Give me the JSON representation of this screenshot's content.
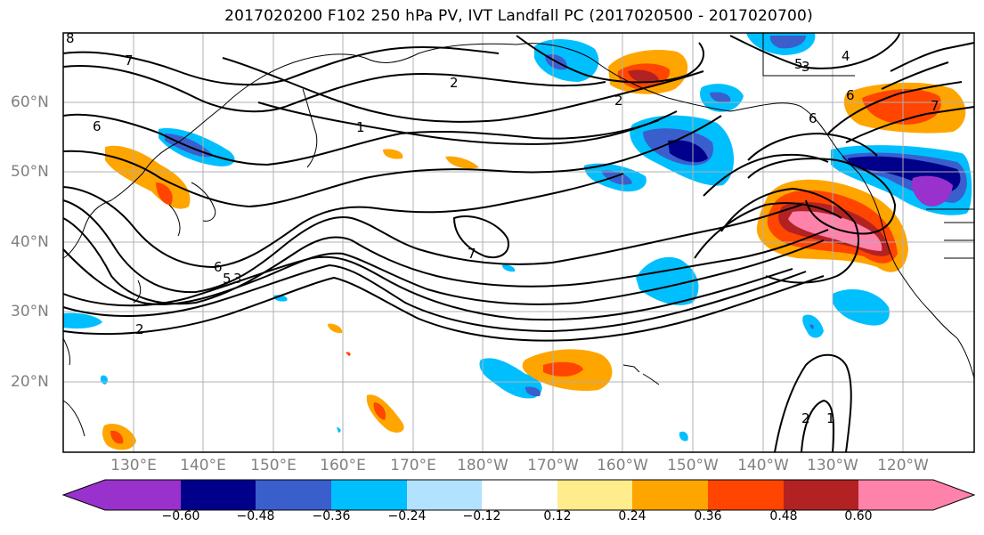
{
  "title": "2017020200 F102 250 hPa PV, IVT Landfall PC (2017020500 - 2017020700)",
  "map": {
    "lat_labels": [
      "60°N",
      "50°N",
      "40°N",
      "30°N",
      "20°N"
    ],
    "lon_labels": [
      "130°E",
      "140°E",
      "150°E",
      "160°E",
      "170°E",
      "180°W",
      "170°W",
      "160°W",
      "150°W",
      "140°W",
      "130°W",
      "120°W"
    ],
    "contour_labels": [
      "8",
      "7",
      "6",
      "2",
      "6",
      "5",
      "3",
      "2",
      "1",
      "7",
      "2",
      "4",
      "6",
      "7",
      "6",
      "5",
      "3",
      "2",
      "1"
    ]
  },
  "colorbar": {
    "tick_labels": [
      "−0.60",
      "−0.48",
      "−0.36",
      "−0.24",
      "−0.12",
      "0.12",
      "0.24",
      "0.36",
      "0.48",
      "0.60"
    ],
    "colors": [
      "#9932cc",
      "#00008b",
      "#3a5fcd",
      "#00bfff",
      "#b2e2ff",
      "#ffffff",
      "#ffec8b",
      "#ffa500",
      "#ff4500",
      "#b22222",
      "#ff82ab"
    ]
  }
}
